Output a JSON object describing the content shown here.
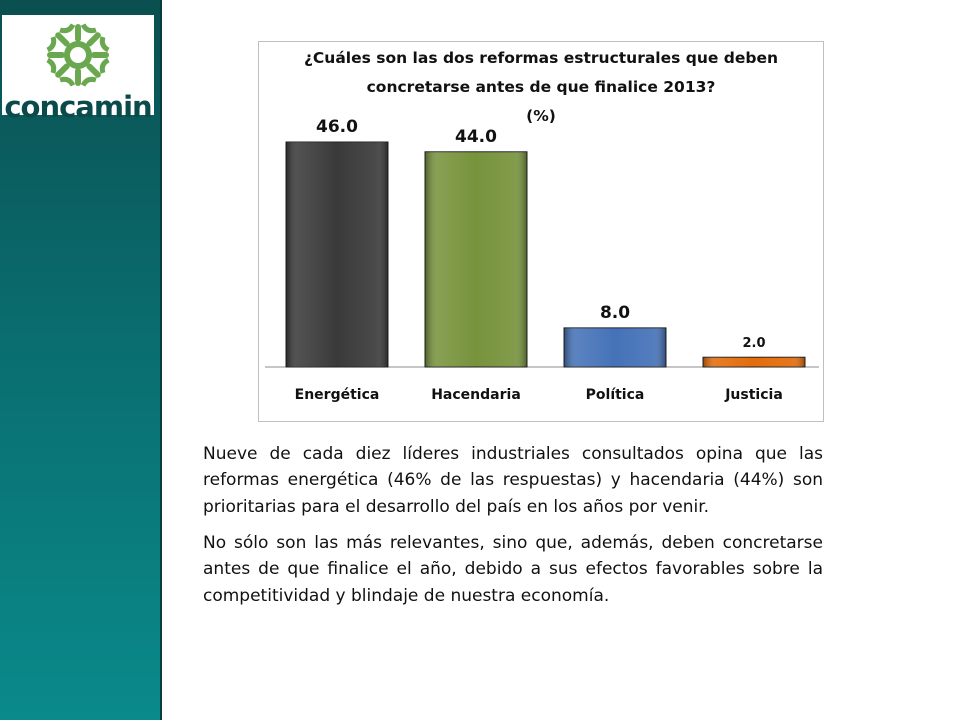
{
  "brand": {
    "name": "concamin",
    "mark_color": "#6aa84f",
    "text_color": "#0b4a4b"
  },
  "colors": {
    "sidebar_top": "#0b4f50",
    "sidebar_bottom": "#0a8a8b"
  },
  "chart_data": {
    "type": "bar",
    "title_lines": [
      "¿Cuáles son las dos reformas estructurales que deben",
      "concretarse antes de que finalice 2013?",
      "(%)"
    ],
    "categories": [
      "Energética",
      "Hacendaria",
      "Política",
      "Justicia"
    ],
    "values": [
      46.0,
      44.0,
      8.0,
      2.0
    ],
    "value_labels": [
      "46.0",
      "44.0",
      "8.0",
      "2.0"
    ],
    "colors": [
      "#3a3a3a",
      "#77933c",
      "#4572b8",
      "#e46c0a"
    ],
    "ylim": [
      0,
      46
    ],
    "grid": false,
    "legend": "none",
    "xlabel": "",
    "ylabel": ""
  },
  "text": {
    "paragraph_1": "Nueve de cada diez líderes industriales consultados opina que las reformas energética (46% de las respuestas) y hacendaria (44%) son prioritarias para el desarrollo del país en los años por venir.",
    "paragraph_2": "No sólo son las más relevantes, sino que, además, deben concretarse antes de que finalice el año, debido a sus efectos favorables sobre la competitividad y blindaje de nuestra economía."
  }
}
